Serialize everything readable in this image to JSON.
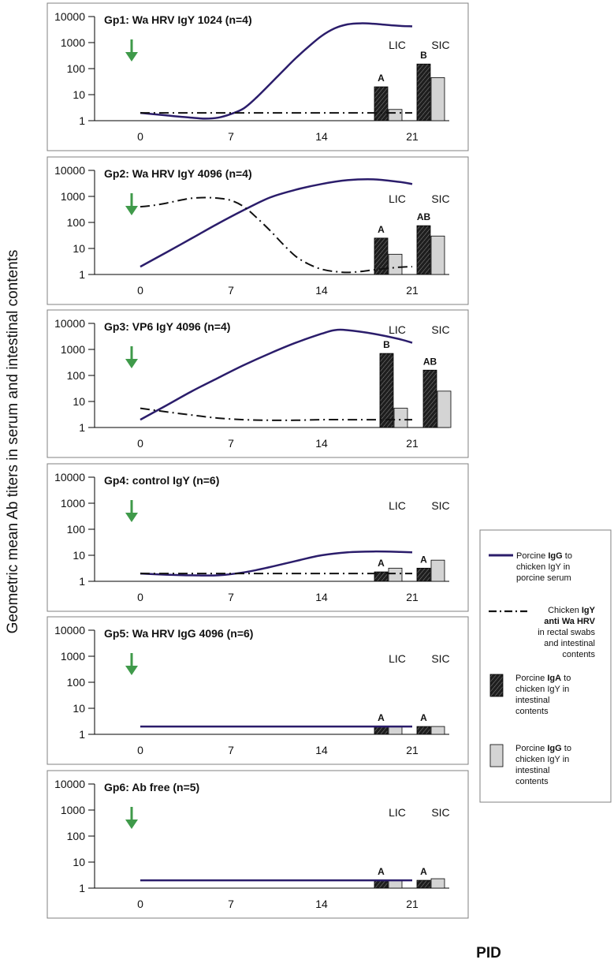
{
  "y_axis_label": "Geometric mean Ab titers in serum and intestinal contents",
  "x_axis_label": "PID",
  "colors": {
    "igg_serum_line": "#2b1d6b",
    "igy_line": "#111111",
    "iga_bar": "#1e1e1e",
    "igg_bar": "#d4d4d4",
    "arrow": "#3f9a4a",
    "frame": "#808080"
  },
  "legend": {
    "igg_serum": {
      "pre": "Porcine ",
      "bold": "IgG",
      "post": " to",
      "lines": [
        "chicken IgY in",
        "porcine serum"
      ]
    },
    "igy": {
      "l1_pre": "Chicken ",
      "l1_bold": "IgY",
      "l2_bold": "anti Wa HRV",
      "lines": [
        "in rectal swabs",
        "and intestinal",
        "contents"
      ]
    },
    "iga": {
      "pre": "Porcine ",
      "bold": "IgA",
      "post": " to",
      "lines": [
        "chicken IgY in",
        "intestinal",
        "contents"
      ]
    },
    "igg_int": {
      "pre": "Porcine ",
      "bold": "IgG",
      "post": " to",
      "lines": [
        "chicken IgY in",
        "intestinal",
        "contents"
      ]
    }
  },
  "chart_data": [
    {
      "type": "line+bar",
      "title": "Gp1: Wa HRV IgY 1024  (n=4)",
      "y_scale": "log10",
      "ylim": [
        1,
        10000
      ],
      "y_ticks": [
        "1",
        "10",
        "100",
        "1000",
        "10000"
      ],
      "x_ticks": [
        "0",
        "7",
        "14",
        "21"
      ],
      "bar_group_labels": [
        "LIC",
        "SIC"
      ],
      "series": [
        {
          "name": "Porcine IgG to chicken IgY in porcine serum",
          "style": "solid",
          "x": [
            0,
            2,
            4,
            5,
            6,
            7,
            8,
            9,
            10,
            11,
            12,
            13,
            14,
            15,
            16,
            17,
            18,
            19,
            20,
            21
          ],
          "values": [
            2,
            1.6,
            1.3,
            1.2,
            1.3,
            1.8,
            3,
            8,
            25,
            80,
            250,
            700,
            1800,
            3500,
            5000,
            5500,
            5300,
            4800,
            4400,
            4200
          ]
        },
        {
          "name": "Chicken IgY anti Wa HRV",
          "style": "dashdot",
          "x": [
            0,
            3,
            6,
            9,
            12,
            15,
            18,
            21
          ],
          "values": [
            2,
            2,
            2,
            2,
            2,
            2,
            2,
            2
          ]
        }
      ],
      "bars": [
        {
          "group": "LIC",
          "IgA": 20,
          "IgG": 2.7,
          "letter": "A"
        },
        {
          "group": "SIC",
          "IgA": 150,
          "IgG": 45,
          "letter": "B"
        }
      ]
    },
    {
      "type": "line+bar",
      "title": "Gp2: Wa HRV IgY 4096  (n=4)",
      "y_scale": "log10",
      "ylim": [
        1,
        10000
      ],
      "y_ticks": [
        "1",
        "10",
        "100",
        "1000",
        "10000"
      ],
      "x_ticks": [
        "0",
        "7",
        "14",
        "21"
      ],
      "bar_group_labels": [
        "LIC",
        "SIC"
      ],
      "series": [
        {
          "name": "Porcine IgG to chicken IgY in porcine serum",
          "style": "solid",
          "x": [
            0,
            2,
            4,
            6,
            8,
            10,
            12,
            14,
            16,
            18,
            20,
            21
          ],
          "values": [
            2,
            7,
            25,
            90,
            300,
            900,
            1800,
            3000,
            4200,
            4500,
            3600,
            3000
          ]
        },
        {
          "name": "Chicken IgY anti Wa HRV",
          "style": "dashdot",
          "x": [
            0,
            1,
            2,
            3,
            4,
            5,
            6,
            7,
            8,
            9,
            10,
            11,
            12,
            13,
            14,
            15,
            16,
            17,
            18,
            19,
            20,
            21
          ],
          "values": [
            400,
            450,
            550,
            700,
            850,
            900,
            850,
            700,
            400,
            150,
            50,
            15,
            5,
            2.5,
            1.6,
            1.3,
            1.2,
            1.3,
            1.5,
            1.7,
            1.9,
            2
          ]
        }
      ],
      "bars": [
        {
          "group": "LIC",
          "IgA": 25,
          "IgG": 6,
          "letter": "A"
        },
        {
          "group": "SIC",
          "IgA": 75,
          "IgG": 30,
          "letter": "AB"
        }
      ]
    },
    {
      "type": "line+bar",
      "title": "Gp3: VP6 IgY 4096  (n=4)",
      "y_scale": "log10",
      "ylim": [
        1,
        10000
      ],
      "y_ticks": [
        "1",
        "10",
        "100",
        "1000",
        "10000"
      ],
      "x_ticks": [
        "0",
        "7",
        "14",
        "21"
      ],
      "bar_group_labels": [
        "LIC",
        "SIC"
      ],
      "series": [
        {
          "name": "Porcine IgG to chicken IgY in porcine serum",
          "style": "solid",
          "x": [
            0,
            2,
            4,
            6,
            8,
            10,
            12,
            14,
            15,
            16,
            18,
            20,
            21
          ],
          "values": [
            2,
            7,
            25,
            80,
            250,
            700,
            1800,
            4000,
            5500,
            5500,
            4000,
            2500,
            1800
          ]
        },
        {
          "name": "Chicken IgY anti Wa HRV",
          "style": "dashdot",
          "x": [
            0,
            2,
            4,
            6,
            8,
            10,
            12,
            14,
            16,
            18,
            21
          ],
          "values": [
            5.5,
            4,
            3,
            2.3,
            2,
            1.9,
            1.9,
            2,
            2,
            2,
            2
          ]
        }
      ],
      "bars": [
        {
          "group": "LIC",
          "IgA": 700,
          "IgG": 5.5,
          "letter": "B"
        },
        {
          "group": "SIC",
          "IgA": 160,
          "IgG": 25,
          "letter": "AB"
        }
      ]
    },
    {
      "type": "line+bar",
      "title": "Gp4: control IgY  (n=6)",
      "y_scale": "log10",
      "ylim": [
        1,
        10000
      ],
      "y_ticks": [
        "1",
        "10",
        "100",
        "1000",
        "10000"
      ],
      "x_ticks": [
        "0",
        "7",
        "14",
        "21"
      ],
      "bar_group_labels": [
        "LIC",
        "SIC"
      ],
      "series": [
        {
          "name": "Porcine IgG to chicken IgY in porcine serum",
          "style": "solid",
          "x": [
            0,
            2,
            4,
            6,
            8,
            10,
            12,
            14,
            16,
            18,
            20,
            21
          ],
          "values": [
            2,
            1.8,
            1.7,
            1.7,
            2.2,
            3.5,
            6,
            10,
            13,
            14,
            13.5,
            13
          ]
        },
        {
          "name": "Chicken IgY anti Wa HRV",
          "style": "dashdot",
          "x": [
            0,
            3,
            6,
            9,
            12,
            15,
            18,
            21
          ],
          "values": [
            2,
            2,
            2,
            2,
            2,
            2,
            2,
            2
          ]
        }
      ],
      "bars": [
        {
          "group": "LIC",
          "IgA": 2.3,
          "IgG": 3.2,
          "letter": "A"
        },
        {
          "group": "SIC",
          "IgA": 3.2,
          "IgG": 6.5,
          "letter": "A"
        }
      ]
    },
    {
      "type": "line+bar",
      "title": "Gp5: Wa HRV IgG 4096  (n=6)",
      "y_scale": "log10",
      "ylim": [
        1,
        10000
      ],
      "y_ticks": [
        "1",
        "10",
        "100",
        "1000",
        "10000"
      ],
      "x_ticks": [
        "0",
        "7",
        "14",
        "21"
      ],
      "bar_group_labels": [
        "LIC",
        "SIC"
      ],
      "series": [
        {
          "name": "Porcine IgG to chicken IgY in porcine serum",
          "style": "solid",
          "x": [
            0,
            21
          ],
          "values": [
            2,
            2
          ]
        }
      ],
      "bars": [
        {
          "group": "LIC",
          "IgA": 2,
          "IgG": 2,
          "letter": "A"
        },
        {
          "group": "SIC",
          "IgA": 2,
          "IgG": 2,
          "letter": "A"
        }
      ]
    },
    {
      "type": "line+bar",
      "title": "Gp6: Ab free (n=5)",
      "y_scale": "log10",
      "ylim": [
        1,
        10000
      ],
      "y_ticks": [
        "1",
        "10",
        "100",
        "1000",
        "10000"
      ],
      "x_ticks": [
        "0",
        "7",
        "14",
        "21"
      ],
      "bar_group_labels": [
        "LIC",
        "SIC"
      ],
      "series": [
        {
          "name": "Porcine IgG to chicken IgY in porcine serum",
          "style": "solid",
          "x": [
            0,
            21
          ],
          "values": [
            2,
            2
          ]
        }
      ],
      "bars": [
        {
          "group": "LIC",
          "IgA": 2,
          "IgG": 2,
          "letter": "A"
        },
        {
          "group": "SIC",
          "IgA": 2,
          "IgG": 2.3,
          "letter": "A"
        }
      ]
    }
  ]
}
